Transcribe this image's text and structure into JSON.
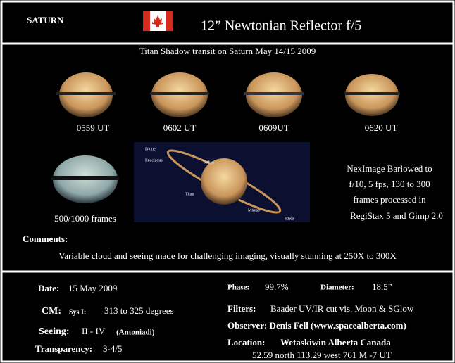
{
  "header": {
    "object": "SATURN",
    "telescope": "12” Newtonian Reflector f/5"
  },
  "subtitle": "Titan Shadow transit on Saturn May 14/15 2009",
  "images": [
    {
      "caption": "0559 UT"
    },
    {
      "caption": "0602 UT"
    },
    {
      "caption": "0609UT"
    },
    {
      "caption": "0620 UT"
    },
    {
      "caption": "500/1000 frames"
    }
  ],
  "moons": [
    "Dione",
    "Enceladus",
    "Tethys",
    "Titan",
    "Mimas",
    "Rhea"
  ],
  "equipment": [
    "NexImage Barlowed to",
    "f/10, 5 fps, 130 to 300",
    "frames processed in",
    "RegiStax 5 and Gimp 2.0"
  ],
  "comments": {
    "label": "Comments:",
    "text": "Variable cloud and seeing made for challenging imaging, visually stunning at 250X to 300X"
  },
  "details": {
    "date": {
      "label": "Date:",
      "value": "15 May 2009"
    },
    "cm": {
      "label": "CM:",
      "system": "Sys I:",
      "value": "313 to 325 degrees"
    },
    "seeing": {
      "label": "Seeing:",
      "value": "II - IV",
      "scale": "(Antoniadi)"
    },
    "transparency": {
      "label": "Transparency:",
      "value": "3-4/5"
    },
    "phase": {
      "label": "Phase:",
      "value": "99.7%"
    },
    "diameter": {
      "label": "Diameter:",
      "value": "18.5”"
    },
    "filters": {
      "label": "Filters:",
      "value": "Baader UV/IR cut vis. Moon & SGlow"
    },
    "observer": "Observer: Denis Fell (www.spacealberta.com)",
    "location": {
      "label": "Location:",
      "value": "Wetaskiwin  Alberta  Canada",
      "coords": "52.59 north 113.29 west 761 M -7 UT"
    }
  }
}
